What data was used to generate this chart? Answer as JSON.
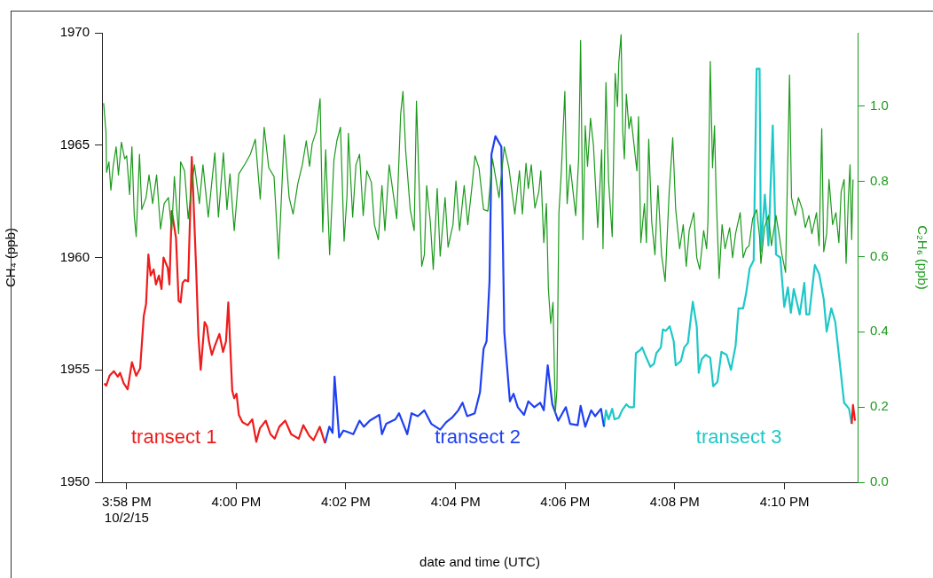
{
  "chart_data": {
    "type": "line",
    "xlabel": "date and time (UTC)",
    "ylabel": "CH₄ (ppb)",
    "y2label": "C₂H₆ (ppb)",
    "xlim": [
      15.9592,
      16.1889
    ],
    "xticks": [
      {
        "value": 15.9667,
        "label": "3:58 PM\n10/2/15"
      },
      {
        "value": 16,
        "label": "4:00 PM"
      },
      {
        "value": 16.0333,
        "label": "4:02 PM"
      },
      {
        "value": 16.0667,
        "label": "4:04 PM"
      },
      {
        "value": 16.1,
        "label": "4:06 PM"
      },
      {
        "value": 16.1333,
        "label": "4:08 PM"
      },
      {
        "value": 16.1667,
        "label": "4:10 PM"
      }
    ],
    "ylim": [
      1950,
      1970
    ],
    "yticks": [
      1950,
      1955,
      1960,
      1965,
      1970
    ],
    "y2lim": [
      0,
      1.195
    ],
    "y2ticks": [
      {
        "value": 0,
        "label": "0.0"
      },
      0.2,
      0.4,
      0.6,
      0.8,
      {
        "value": 1,
        "label": "1.0"
      }
    ],
    "series": [
      {
        "color": "#1a9a1a",
        "axis": "y2",
        "x": [
          15.9597,
          15.9604,
          15.9606,
          15.9613,
          15.9619,
          15.9626,
          15.9635,
          15.9642,
          15.9651,
          15.9661,
          15.9667,
          15.9676,
          15.9683,
          15.969,
          15.9696,
          15.9706,
          15.9713,
          15.9726,
          15.9735,
          15.9746,
          15.9758,
          15.977,
          15.9781,
          15.9794,
          15.9804,
          15.9812,
          15.9825,
          15.9831,
          15.9843,
          15.9854,
          15.9865,
          15.9873,
          15.9888,
          15.9899,
          15.9915,
          15.9935,
          15.9946,
          15.9961,
          15.9972,
          15.9981,
          15.9994,
          16.0008,
          16.0028,
          16.0043,
          16.0058,
          16.0073,
          16.0085,
          16.0099,
          16.0115,
          16.0129,
          16.0146,
          16.0161,
          16.0173,
          16.0187,
          16.0201,
          16.0213,
          16.0223,
          16.0231,
          16.0243,
          16.0255,
          16.0263,
          16.0272,
          16.0284,
          16.0297,
          16.0306,
          16.0317,
          16.0328,
          16.0337,
          16.0341,
          16.0354,
          16.0364,
          16.0375,
          16.0386,
          16.0397,
          16.0411,
          16.042,
          16.0432,
          16.0443,
          16.0452,
          16.0465,
          16.0479,
          16.0488,
          16.05,
          16.0507,
          16.0515,
          16.0529,
          16.0541,
          16.0548,
          16.0564,
          16.0572,
          16.0579,
          16.059,
          16.0599,
          16.0611,
          16.062,
          16.0635,
          16.0644,
          16.0659,
          16.0668,
          16.0679,
          16.0693,
          16.0704,
          16.0717,
          16.0726,
          16.0738,
          16.0752,
          16.0765,
          16.0779,
          16.0799,
          16.0815,
          16.0829,
          16.0847,
          16.0861,
          16.087,
          16.0881,
          16.0888,
          16.0897,
          16.0908,
          16.092,
          16.0926,
          16.0935,
          16.0943,
          16.0949,
          16.0956,
          16.0963,
          16.097,
          16.0975,
          16.0981,
          16.0988,
          16.0999,
          16.1006,
          16.1015,
          16.1032,
          16.1041,
          16.1047,
          16.1054,
          16.1061,
          16.1068,
          16.1077,
          16.1086,
          16.1099,
          16.1111,
          16.1115,
          16.1124,
          16.1132,
          16.1143,
          16.1152,
          16.1159,
          16.1163,
          16.117,
          16.1175,
          16.118,
          16.1186,
          16.1194,
          16.12,
          16.1209,
          16.1218,
          16.1223,
          16.123,
          16.1241,
          16.1247,
          16.1254,
          16.1263,
          16.1273,
          16.1282,
          16.1293,
          16.1304,
          16.1316,
          16.1327,
          16.1336,
          16.1348,
          16.1359,
          16.1368,
          16.1377,
          16.1391,
          16.14,
          16.1409,
          16.1421,
          16.143,
          16.1434,
          16.1441,
          16.1448,
          16.1454,
          16.1459,
          16.1468,
          16.1477,
          16.1486,
          16.15,
          16.1509,
          16.1518,
          16.1532,
          16.1541,
          16.155,
          16.1559,
          16.157,
          16.1582,
          16.1591,
          16.1595,
          16.1606,
          16.1618,
          16.1627,
          16.1641,
          16.165,
          16.1659,
          16.167,
          16.1682,
          16.1688,
          16.17,
          16.1709,
          16.1721,
          16.173,
          16.1741,
          16.175,
          16.1764,
          16.1772,
          16.178,
          16.1786,
          16.1795,
          16.1802,
          16.1813,
          16.1823,
          16.1832,
          16.1839,
          16.1848,
          16.1854,
          16.1861,
          16.1866,
          16.1871,
          16.1875
        ],
        "values": [
          1.008,
          0.932,
          0.824,
          0.852,
          0.777,
          0.84,
          0.892,
          0.817,
          0.904,
          0.86,
          0.868,
          0.765,
          0.892,
          0.709,
          0.653,
          0.872,
          0.725,
          0.757,
          0.817,
          0.741,
          0.817,
          0.673,
          0.741,
          0.757,
          0.669,
          0.813,
          0.661,
          0.852,
          0.828,
          0.701,
          0.789,
          0.844,
          0.741,
          0.844,
          0.705,
          0.876,
          0.705,
          0.876,
          0.725,
          0.82,
          0.669,
          0.82,
          0.848,
          0.872,
          0.912,
          0.753,
          0.944,
          0.836,
          0.813,
          0.594,
          0.924,
          0.757,
          0.713,
          0.793,
          0.844,
          0.908,
          0.84,
          0.9,
          0.932,
          1.02,
          0.665,
          0.884,
          0.605,
          0.856,
          0.908,
          0.944,
          0.641,
          0.765,
          0.928,
          0.705,
          0.844,
          0.872,
          0.709,
          0.828,
          0.797,
          0.685,
          0.645,
          0.789,
          0.669,
          0.844,
          0.757,
          0.701,
          0.98,
          1.039,
          0.884,
          0.725,
          0.669,
          1.013,
          0.574,
          0.605,
          0.789,
          0.693,
          0.566,
          0.781,
          0.601,
          0.757,
          0.625,
          0.685,
          0.801,
          0.669,
          0.789,
          0.685,
          0.789,
          0.868,
          0.836,
          0.725,
          0.721,
          0.86,
          0.757,
          0.892,
          0.836,
          0.713,
          0.828,
          0.713,
          0.848,
          0.781,
          0.844,
          0.729,
          0.773,
          0.828,
          0.637,
          0.741,
          0.514,
          0.422,
          0.478,
          0.183,
          0.247,
          0.717,
          0.82,
          1.039,
          0.741,
          0.844,
          0.709,
          0.86,
          1.175,
          0.645,
          0.948,
          0.84,
          0.968,
          0.896,
          0.677,
          0.884,
          0.621,
          1.063,
          0.801,
          0.653,
          1.087,
          0.999,
          1.115,
          1.19,
          0.932,
          0.86,
          1.032,
          0.94,
          0.972,
          0.9,
          0.828,
          0.972,
          0.637,
          0.741,
          0.637,
          0.912,
          0.693,
          0.605,
          0.789,
          0.605,
          0.534,
          0.769,
          0.916,
          0.725,
          0.621,
          0.685,
          0.574,
          0.669,
          0.717,
          0.597,
          0.566,
          0.669,
          0.621,
          0.693,
          1.119,
          0.836,
          0.948,
          0.765,
          0.542,
          0.685,
          0.621,
          0.677,
          0.597,
          0.661,
          0.717,
          0.597,
          0.621,
          0.629,
          0.701,
          0.725,
          0.653,
          0.582,
          0.677,
          0.709,
          0.629,
          0.709,
          0.661,
          0.605,
          0.558,
          1.083,
          0.757,
          0.709,
          0.757,
          0.725,
          0.677,
          0.709,
          0.661,
          0.717,
          0.629,
          0.94,
          0.613,
          0.661,
          0.805,
          0.685,
          0.717,
          0.637,
          0.773,
          0.805,
          0.582,
          0.757,
          0.844,
          0.645,
          0.805
        ]
      },
      {
        "name": "transect 1",
        "color": "#ee1c1c",
        "x": [
          15.9599,
          15.9605,
          15.9615,
          15.9628,
          15.964,
          15.9647,
          15.9658,
          15.967,
          15.9683,
          15.9696,
          15.9708,
          15.9719,
          15.9726,
          15.9733,
          15.974,
          15.9749,
          15.9756,
          15.9765,
          15.9773,
          15.9779,
          15.9792,
          15.9797,
          15.9804,
          15.9817,
          15.9825,
          15.9831,
          15.9837,
          15.9844,
          15.9854,
          15.9865,
          15.9878,
          15.9885,
          15.9892,
          15.9904,
          15.9911,
          15.9917,
          15.9926,
          15.9935,
          15.9949,
          15.996,
          15.9969,
          15.9976,
          15.9988,
          15.9994,
          16.0001,
          16.0008,
          16.0019,
          16.0035,
          16.0049,
          16.0061,
          16.0072,
          16.009,
          16.0104,
          16.0117,
          16.0131,
          16.0149,
          16.0167,
          16.019,
          16.0204,
          16.0222,
          16.0235,
          16.0254,
          16.027,
          16.1,
          16.1871,
          16.1875,
          16.1881
        ],
        "values": [
          1954.4,
          1954.3,
          1954.74,
          1954.94,
          1954.7,
          1954.87,
          1954.4,
          1954.14,
          1955.34,
          1954.74,
          1955.07,
          1957.4,
          1957.93,
          1960.13,
          1959.2,
          1959.47,
          1958.8,
          1959.2,
          1958.6,
          1960,
          1959.53,
          1958.8,
          1962.07,
          1960.87,
          1958.07,
          1958,
          1958.87,
          1959,
          1958.94,
          1964.47,
          1959.6,
          1956.54,
          1955,
          1957.13,
          1956.93,
          1956.27,
          1955.67,
          1956.07,
          1956.6,
          1955.8,
          1956.27,
          1958,
          1954.07,
          1953.74,
          1953.94,
          1953,
          1952.67,
          1952.54,
          1952.8,
          1951.8,
          1952.4,
          1952.74,
          1952.14,
          1951.94,
          1952.47,
          1952.74,
          1952.14,
          1951.94,
          1952.54,
          1952.07,
          1951.87,
          1952.47,
          1951.74,
          null,
          1952.6,
          1953.44,
          1952.74
        ]
      },
      {
        "name": "transect 2",
        "color": "#1f40f2",
        "x": [
          16.027,
          16.0283,
          16.0293,
          16.0299,
          16.0313,
          16.0326,
          16.0333,
          16.0356,
          16.0375,
          16.0388,
          16.0406,
          16.0435,
          16.0443,
          16.0456,
          16.0484,
          16.0495,
          16.052,
          16.0533,
          16.0552,
          16.0572,
          16.0593,
          16.062,
          16.0638,
          16.0656,
          16.0675,
          16.0688,
          16.0702,
          16.0725,
          16.0741,
          16.0752,
          16.0761,
          16.077,
          16.0776,
          16.0788,
          16.0806,
          16.0815,
          16.0832,
          16.0843,
          16.0856,
          16.0875,
          16.0888,
          16.0906,
          16.0924,
          16.0935,
          16.0947,
          16.0961,
          16.0979,
          16.1002,
          16.1015,
          16.1038,
          16.1047,
          16.1061,
          16.1079,
          16.1091,
          16.1109,
          16.1118
        ],
        "values": [
          1951.74,
          1952.47,
          1952.2,
          1954.7,
          1952,
          1952.3,
          1952.27,
          1952.14,
          1952.74,
          1952.47,
          1952.74,
          1953,
          1952.14,
          1952.6,
          1952.8,
          1953.07,
          1952.14,
          1953.07,
          1952.94,
          1953.2,
          1952.6,
          1952.34,
          1952.67,
          1952.87,
          1953.2,
          1953.54,
          1952.94,
          1953.07,
          1954,
          1955.94,
          1956.27,
          1958.94,
          1964.6,
          1965.4,
          1964.93,
          1956.67,
          1953.6,
          1953.94,
          1953.34,
          1953,
          1953.6,
          1953.34,
          1953.54,
          1953.2,
          1955.2,
          1953.47,
          1952.74,
          1953.34,
          1952.6,
          1952.54,
          1953.4,
          1952.47,
          1953.2,
          1952.94,
          1953.27,
          1952.47
        ]
      },
      {
        "name": "transect 3",
        "color": "#1ec8c8",
        "x": [
          16.1118,
          16.1124,
          16.1132,
          16.1143,
          16.115,
          16.1163,
          16.1173,
          16.1186,
          16.1195,
          16.1209,
          16.1215,
          16.1227,
          16.1234,
          16.1245,
          16.1259,
          16.127,
          16.1277,
          16.1291,
          16.1297,
          16.1306,
          16.1318,
          16.133,
          16.1336,
          16.1352,
          16.1362,
          16.1373,
          16.1388,
          16.14,
          16.1406,
          16.1415,
          16.1427,
          16.1441,
          16.145,
          16.1463,
          16.1475,
          16.1491,
          16.1504,
          16.1518,
          16.1527,
          16.1541,
          16.155,
          16.1561,
          16.1573,
          16.1582,
          16.1591,
          16.1595,
          16.1607,
          16.1618,
          16.1631,
          16.1641,
          16.1654,
          16.1666,
          16.1677,
          16.1686,
          16.1695,
          16.1713,
          16.1727,
          16.1733,
          16.1742,
          16.1759,
          16.1772,
          16.1786,
          16.1795,
          16.1809,
          16.1821,
          16.1836,
          16.1848,
          16.1863,
          16.1871
        ],
        "values": [
          1952.47,
          1953.2,
          1952.8,
          1953.27,
          1952.8,
          1952.87,
          1953.2,
          1953.47,
          1953.34,
          1953.34,
          1955.74,
          1955.87,
          1956,
          1955.6,
          1955.14,
          1955.27,
          1955.74,
          1956,
          1956.8,
          1956.74,
          1956.94,
          1956.27,
          1955.2,
          1955.4,
          1956,
          1956.2,
          1958.03,
          1956.94,
          1954.87,
          1955.47,
          1955.67,
          1955.54,
          1954.27,
          1954.47,
          1955.8,
          1955.67,
          1955,
          1956.07,
          1957.74,
          1957.74,
          1958.4,
          1959.53,
          1959.87,
          1968.4,
          1968.4,
          1960.27,
          1962.8,
          1960.54,
          1965.87,
          1960.13,
          1960,
          1957.8,
          1958.67,
          1957.54,
          1958.6,
          1957.47,
          1958.87,
          1957.47,
          1957.47,
          1959.67,
          1959.27,
          1958.14,
          1956.7,
          1957.74,
          1957.14,
          1955.14,
          1953.54,
          1953.27,
          1952.6
        ]
      }
    ]
  }
}
